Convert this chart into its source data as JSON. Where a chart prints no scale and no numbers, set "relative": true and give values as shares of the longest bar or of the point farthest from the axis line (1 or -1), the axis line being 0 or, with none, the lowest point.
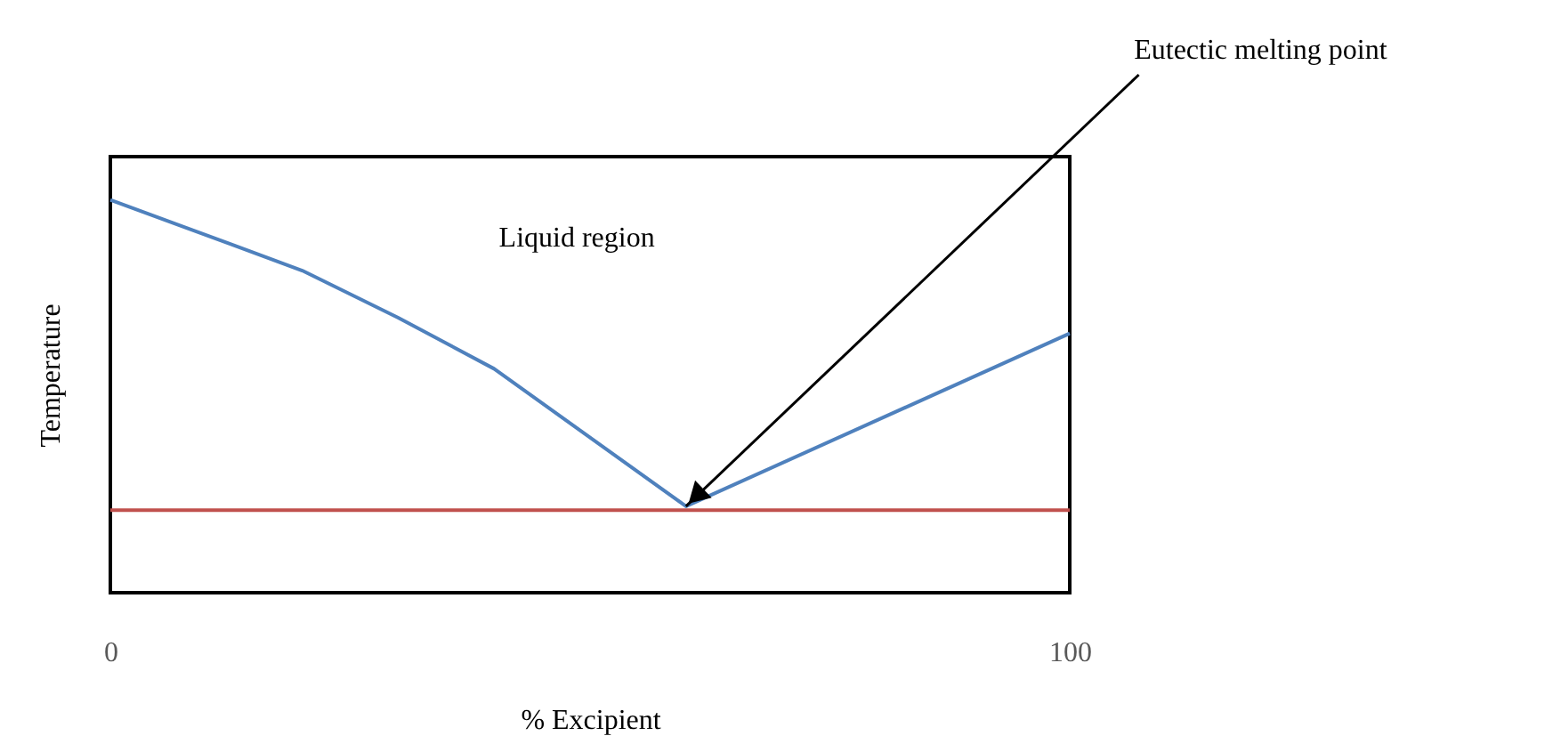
{
  "chart_data": {
    "type": "line",
    "relative": true,
    "xlabel": "% Excipient",
    "ylabel": "Temperature",
    "xlim": [
      0,
      100
    ],
    "xticks": [
      0,
      100
    ],
    "line_style": "solid",
    "series": [
      {
        "color": "#4f81bd",
        "x": [
          0,
          20,
          30,
          40,
          60,
          100
        ],
        "values": [
          1,
          0.82,
          0.7,
          0.57,
          0.22,
          0.66
        ]
      },
      {
        "color": "#c0504d",
        "x": [
          0,
          100
        ],
        "values": [
          0.21,
          0.21
        ]
      }
    ],
    "annotations": [
      "Liquid region",
      {
        "text": "Eutectic melting point",
        "x": 60,
        "y": 0.22
      }
    ]
  }
}
